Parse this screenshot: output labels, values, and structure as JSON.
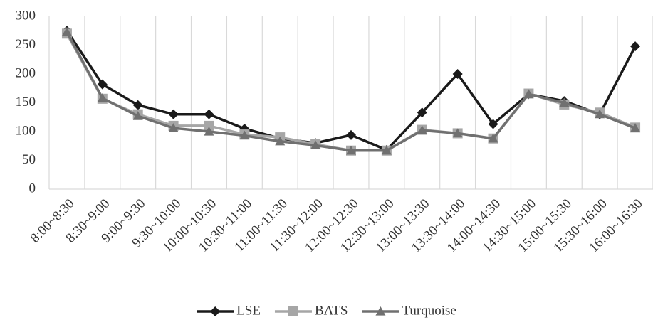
{
  "chart_data": {
    "type": "line",
    "categories": [
      "8:00~8:30",
      "8:30~9:00",
      "9:00~9:30",
      "9:30~10:00",
      "10:00~10:30",
      "10:30~11:00",
      "11:00~11:30",
      "11:30~12:00",
      "12:00~12:30",
      "12:30~13:00",
      "13:00~13:30",
      "13:30~14:00",
      "14:00~14:30",
      "14:30~15:00",
      "15:00~15:30",
      "15:30~16:00",
      "16:00~16:30"
    ],
    "series": [
      {
        "name": "LSE",
        "color": "#1a1a1a",
        "marker": "diamond",
        "values": [
          275,
          182,
          146,
          130,
          130,
          105,
          88,
          80,
          94,
          68,
          133,
          200,
          113,
          165,
          153,
          130,
          248
        ]
      },
      {
        "name": "BATS",
        "color": "#a6a6a6",
        "marker": "square",
        "values": [
          270,
          157,
          130,
          110,
          110,
          95,
          90,
          78,
          67,
          67,
          103,
          97,
          88,
          166,
          147,
          133,
          107
        ]
      },
      {
        "name": "Turquoise",
        "color": "#707070",
        "marker": "triangle",
        "values": [
          273,
          158,
          127,
          106,
          100,
          93,
          83,
          76,
          67,
          67,
          102,
          97,
          88,
          165,
          150,
          130,
          106
        ]
      }
    ],
    "ylim": [
      0,
      300
    ],
    "yticks": [
      0,
      50,
      100,
      150,
      200,
      250,
      300
    ],
    "grid": "vertical",
    "legend": "bottom"
  }
}
